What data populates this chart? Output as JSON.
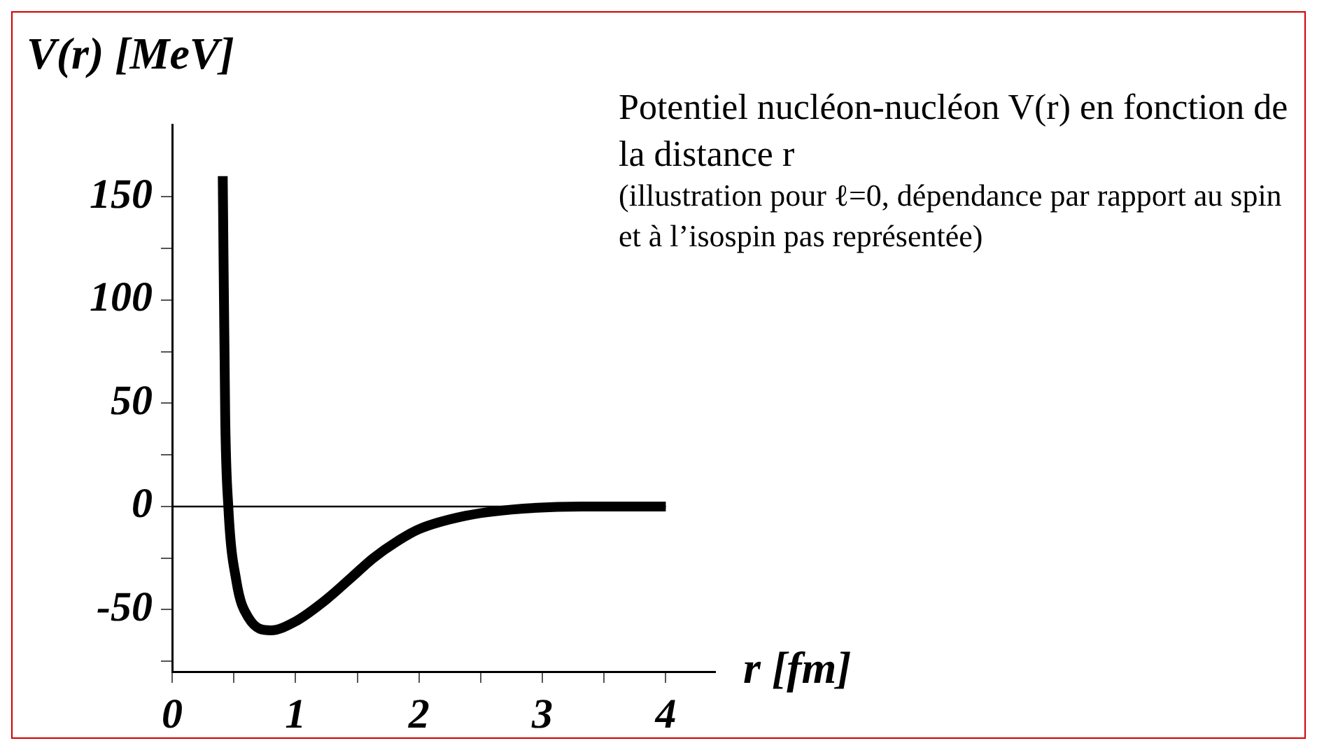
{
  "chart_data": {
    "type": "line",
    "xlabel": "r [fm]",
    "ylabel": "V(r) [MeV]",
    "annotations": [
      "Potentiel nucléon-nucléon V(r) en fonction de la distance r",
      "(illustration pour ℓ=0, dépendance par rapport au spin et à l’isospin pas représentée)"
    ],
    "series": [
      {
        "color": "#000000",
        "x": [
          0.41,
          0.43,
          0.455,
          0.52,
          0.62,
          0.8,
          0.99,
          1.25,
          1.46,
          1.63,
          1.82,
          2.0,
          2.38,
          2.75,
          3.32,
          4.0
        ],
        "values": [
          160,
          43,
          0,
          -36,
          -54,
          -60,
          -56,
          -45,
          -34,
          -25,
          -17,
          -11,
          -4.5,
          -1.5,
          0,
          0
        ]
      }
    ],
    "xlim": [
      0,
      4.4
    ],
    "xticks": [
      0,
      {
        "value": 0.5,
        "label": null
      },
      1,
      {
        "value": 1.5,
        "label": null
      },
      2,
      {
        "value": 2.5,
        "label": null
      },
      3,
      {
        "value": 3.5,
        "label": null
      },
      4
    ],
    "ylim": [
      -80,
      185
    ],
    "yticks": [
      {
        "value": -75,
        "label": null
      },
      -50,
      {
        "value": -25,
        "label": null
      },
      0,
      {
        "value": 25,
        "label": null
      },
      50,
      {
        "value": 75,
        "label": null
      },
      100,
      {
        "value": 125,
        "label": null
      },
      150
    ],
    "ref_lines": [
      {
        "axis": "y",
        "value": 0,
        "color": "#000000"
      }
    ],
    "grid": false,
    "legend": false,
    "marker": "none",
    "line_style": "solid"
  }
}
